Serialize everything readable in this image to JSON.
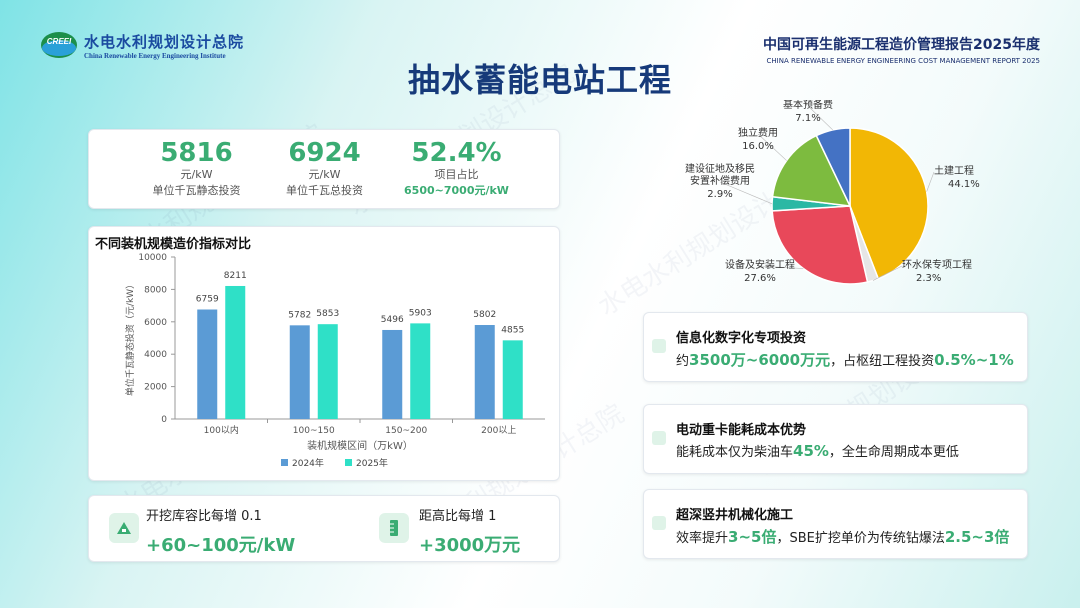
{
  "header": {
    "logo_badge": "CREEI",
    "logo_cn": "水电水利规划设计总院",
    "logo_en": "China Renewable Energy Engineering Institute",
    "report_cn": "中国可再生能源工程造价管理报告2025年度",
    "report_en": "CHINA RENEWABLE ENERGY ENGINEERING COST MANAGEMENT REPORT 2025"
  },
  "page_title": "抽水蓄能电站工程",
  "kpis": [
    {
      "value": "5816",
      "unit": "元/kW",
      "label": "单位千瓦静态投资"
    },
    {
      "value": "6924",
      "unit": "元/kW",
      "label": "单位千瓦总投资"
    },
    {
      "value": "52.4%",
      "unit": "项目占比",
      "label": "6500~7000元/kW"
    }
  ],
  "bottom_cards": [
    {
      "label": "开挖库容比每增 0.1",
      "value": "+60~100元/kW",
      "icon": "mountain-icon"
    },
    {
      "label": "距高比每增 1",
      "value": "+3000万元",
      "icon": "ruler-icon"
    }
  ],
  "side_cards": [
    {
      "title": "信息化数字化专项投资",
      "pre": "约",
      "hl1": "3500万~6000万元",
      "mid": "，占枢纽工程投资",
      "hl2": "0.5%~1%",
      "post": "",
      "icon": "chip-icon"
    },
    {
      "title": "电动重卡能耗成本优势",
      "pre": "能耗成本仅为柴油车",
      "hl1": "45%",
      "mid": "，全生命周期成本更低",
      "hl2": "",
      "post": "",
      "icon": "truck-icon"
    },
    {
      "title": "超深竖井机械化施工",
      "pre": "效率提升",
      "hl1": "3~5倍",
      "mid": "，SBE扩挖单价为传统钻爆法",
      "hl2": "2.5~3倍",
      "post": "",
      "icon": "drill-icon"
    }
  ],
  "watermark": "水电水利规划设计总院",
  "colors": {
    "accent_green": "#3aac73",
    "title_blue": "#163a7a",
    "bar_2024": "#5b9bd5",
    "bar_2025": "#2fe0c7"
  },
  "chart_data": [
    {
      "type": "bar",
      "title": "不同装机规模造价指标对比",
      "xlabel": "装机规模区间（万kW）",
      "ylabel": "单位千瓦静态投资（元/kW）",
      "categories": [
        "100以内",
        "100~150",
        "150~200",
        "200以上"
      ],
      "ylim": [
        0,
        10000
      ],
      "yticks": [
        0,
        2000,
        4000,
        6000,
        8000,
        10000
      ],
      "legend_position": "bottom",
      "grid": false,
      "series": [
        {
          "name": "2024年",
          "color": "#5b9bd5",
          "values": [
            6759,
            5782,
            5496,
            5802
          ]
        },
        {
          "name": "2025年",
          "color": "#2fe0c7",
          "values": [
            8211,
            5853,
            5903,
            4855
          ]
        }
      ]
    },
    {
      "type": "pie",
      "title": "",
      "slices": [
        {
          "label": "土建工程",
          "value": 44.1,
          "display": "44.1%",
          "color": "#f2b705"
        },
        {
          "label": "环水保专项工程",
          "value": 2.3,
          "display": "2.3%",
          "color": "#e6e6e6"
        },
        {
          "label": "设备及安装工程",
          "value": 27.6,
          "display": "27.6%",
          "color": "#e8485a"
        },
        {
          "label": "建设征地及移民安置补偿费用",
          "label_lines": [
            "建设征地及移民",
            "安置补偿费用"
          ],
          "value": 2.9,
          "display": "2.9%",
          "color": "#2bb8a4"
        },
        {
          "label": "独立费用",
          "value": 16.0,
          "display": "16.0%",
          "color": "#7dbb3f"
        },
        {
          "label": "基本预备费",
          "value": 7.1,
          "display": "7.1%",
          "color": "#4472c4"
        }
      ]
    }
  ]
}
